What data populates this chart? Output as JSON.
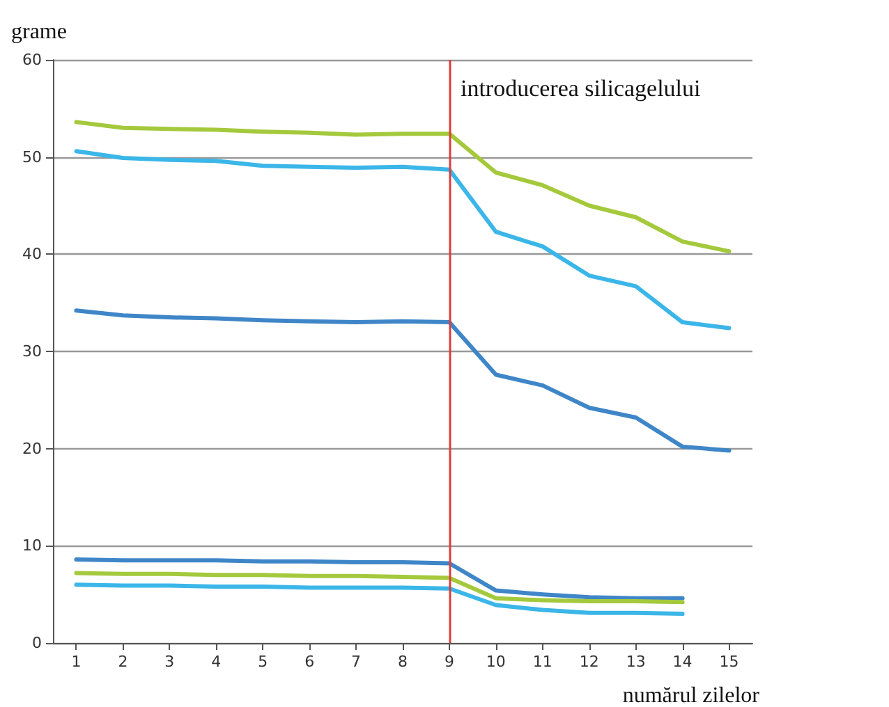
{
  "chart_data": {
    "type": "line",
    "ylabel": "grame",
    "xlabel": "numărul zilelor",
    "x": [
      1,
      2,
      3,
      4,
      5,
      6,
      7,
      8,
      9,
      10,
      11,
      12,
      13,
      14,
      15
    ],
    "series": [
      {
        "color": "#a4c93c",
        "values": [
          53.6,
          53.0,
          52.9,
          52.8,
          52.6,
          52.5,
          52.3,
          52.4,
          52.4,
          48.4,
          47.1,
          45.0,
          43.8,
          41.3,
          40.3
        ]
      },
      {
        "color": "#3bb6e8",
        "values": [
          50.6,
          49.9,
          49.7,
          49.6,
          49.1,
          49.0,
          48.9,
          49.0,
          48.7,
          42.3,
          40.8,
          37.8,
          36.7,
          33.0,
          32.4
        ]
      },
      {
        "color": "#3f86c8",
        "values": [
          34.2,
          33.7,
          33.5,
          33.4,
          33.2,
          33.1,
          33.0,
          33.1,
          33.0,
          27.6,
          26.5,
          24.2,
          23.2,
          20.2,
          19.8
        ]
      },
      {
        "color": "#3f86c8",
        "values": [
          8.6,
          8.5,
          8.5,
          8.5,
          8.4,
          8.4,
          8.3,
          8.3,
          8.2,
          5.4,
          5.0,
          4.7,
          4.6,
          4.6,
          null
        ]
      },
      {
        "color": "#a4c93c",
        "values": [
          7.2,
          7.1,
          7.1,
          7.0,
          7.0,
          6.9,
          6.9,
          6.8,
          6.7,
          4.6,
          4.4,
          4.3,
          4.3,
          4.2,
          null
        ]
      },
      {
        "color": "#3bb6e8",
        "values": [
          6.0,
          5.9,
          5.9,
          5.8,
          5.8,
          5.7,
          5.7,
          5.7,
          5.6,
          3.9,
          3.4,
          3.1,
          3.1,
          3.0,
          null
        ]
      }
    ],
    "xlim": [
      0.5,
      15.5
    ],
    "xticks": [
      1,
      2,
      3,
      4,
      5,
      6,
      7,
      8,
      9,
      10,
      11,
      12,
      13,
      14,
      15
    ],
    "ylim": [
      0,
      60
    ],
    "yticks": [
      0,
      10,
      20,
      30,
      40,
      50,
      60
    ],
    "grid": "y",
    "marker": "none",
    "line_style": "solid",
    "ref_lines": [
      {
        "axis": "x",
        "value": 9,
        "label": "introducerea silicagelului",
        "color": "#e03c3c"
      }
    ]
  }
}
